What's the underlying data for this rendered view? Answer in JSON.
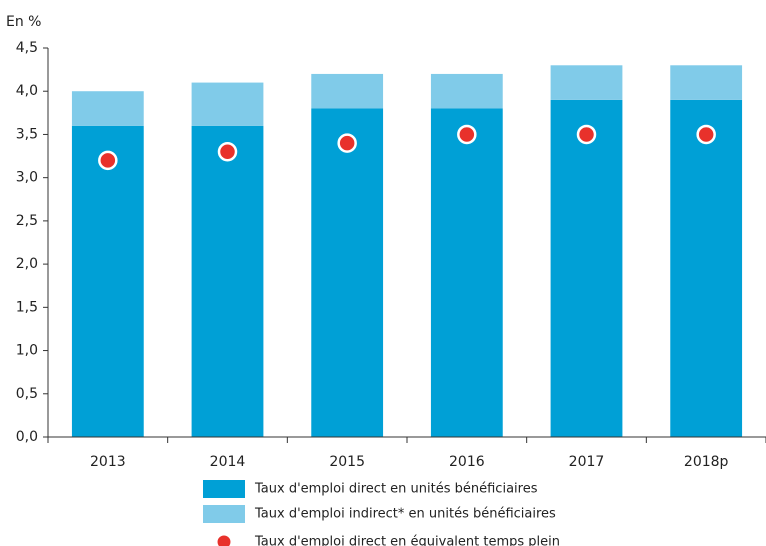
{
  "chart_data": {
    "type": "bar",
    "y_label": "En %",
    "categories": [
      "2013",
      "2014",
      "2015",
      "2016",
      "2017",
      "2018p"
    ],
    "series": [
      {
        "name": "Taux d'emploi direct en unités bénéficiaires",
        "color": "#00a0d6",
        "kind": "bar",
        "values": [
          3.6,
          3.6,
          3.8,
          3.8,
          3.9,
          3.9
        ]
      },
      {
        "name": "Taux d'emploi indirect* en unités bénéficiaires",
        "color": "#80cbe9",
        "kind": "bar",
        "values": [
          0.4,
          0.5,
          0.4,
          0.4,
          0.4,
          0.4
        ]
      },
      {
        "name": "Taux d'emploi direct en équivalent temps plein",
        "color": "#e8312b",
        "kind": "point",
        "values": [
          3.2,
          3.3,
          3.4,
          3.5,
          3.5,
          3.5
        ]
      }
    ],
    "ylim": [
      0,
      4.5
    ],
    "yticks": [
      {
        "value": 0,
        "label": "0,0"
      },
      {
        "value": 0.5,
        "label": "0,5"
      },
      {
        "value": 1,
        "label": "1,0"
      },
      {
        "value": 1.5,
        "label": "1,5"
      },
      {
        "value": 2,
        "label": "2,0"
      },
      {
        "value": 2.5,
        "label": "2,5"
      },
      {
        "value": 3,
        "label": "3,0"
      },
      {
        "value": 3.5,
        "label": "3,5"
      },
      {
        "value": 4,
        "label": "4,0"
      },
      {
        "value": 4.5,
        "label": "4,5"
      }
    ],
    "grid": false,
    "legend": "bottom"
  }
}
